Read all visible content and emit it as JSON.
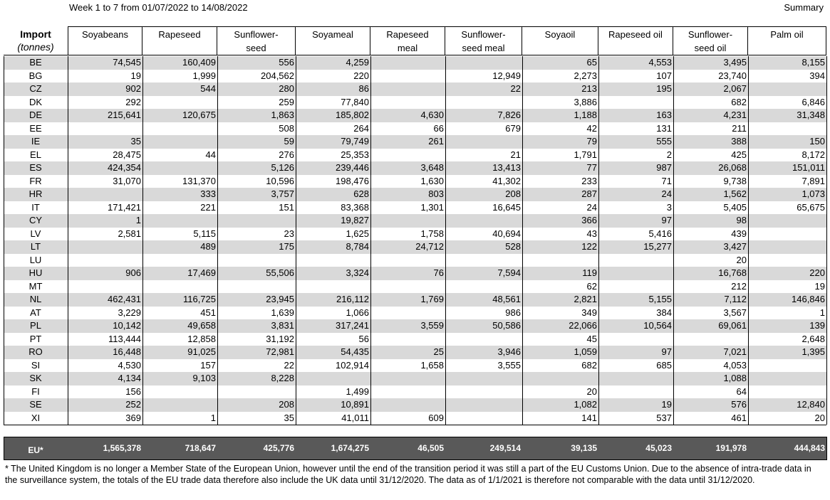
{
  "header": {
    "title": "Week 1 to 7 from 01/07/2022 to 14/08/2022",
    "summary": "Summary"
  },
  "table": {
    "corner_title": "Import",
    "corner_unit": "(tonnes)",
    "columns": [
      "Soyabeans",
      "Rapeseed",
      "Sunflower-\nseed",
      "Soyameal",
      "Rapeseed\nmeal",
      "Sunflower-\nseed meal",
      "Soyaoil",
      "Rapeseed oil",
      "Sunflower-\nseed oil",
      "Palm oil"
    ],
    "rows": [
      {
        "label": "BE",
        "values": [
          "74,545",
          "160,409",
          "556",
          "4,259",
          null,
          null,
          "65",
          "4,553",
          "3,495",
          "8,155"
        ]
      },
      {
        "label": "BG",
        "values": [
          "19",
          "1,999",
          "204,562",
          "220",
          null,
          "12,949",
          "2,273",
          "107",
          "23,740",
          "394"
        ]
      },
      {
        "label": "CZ",
        "values": [
          "902",
          "544",
          "280",
          "86",
          null,
          "22",
          "213",
          "195",
          "2,067",
          null
        ]
      },
      {
        "label": "DK",
        "values": [
          "292",
          null,
          "259",
          "77,840",
          null,
          null,
          "3,886",
          null,
          "682",
          "6,846"
        ]
      },
      {
        "label": "DE",
        "values": [
          "215,641",
          "120,675",
          "1,863",
          "185,802",
          "4,630",
          "7,826",
          "1,188",
          "163",
          "4,231",
          "31,348"
        ]
      },
      {
        "label": "EE",
        "values": [
          null,
          null,
          "508",
          "264",
          "66",
          "679",
          "42",
          "131",
          "211",
          null
        ]
      },
      {
        "label": "IE",
        "values": [
          "35",
          null,
          "59",
          "79,749",
          "261",
          null,
          "79",
          "555",
          "388",
          "150"
        ]
      },
      {
        "label": "EL",
        "values": [
          "28,475",
          "44",
          "276",
          "25,353",
          null,
          "21",
          "1,791",
          "2",
          "425",
          "8,172"
        ]
      },
      {
        "label": "ES",
        "values": [
          "424,354",
          null,
          "5,126",
          "239,446",
          "3,648",
          "13,413",
          "77",
          "987",
          "26,068",
          "151,011"
        ]
      },
      {
        "label": "FR",
        "values": [
          "31,070",
          "131,370",
          "10,596",
          "198,476",
          "1,630",
          "41,302",
          "233",
          "71",
          "9,738",
          "7,891"
        ]
      },
      {
        "label": "HR",
        "values": [
          null,
          "333",
          "3,757",
          "628",
          "803",
          "208",
          "287",
          "24",
          "1,562",
          "1,073"
        ]
      },
      {
        "label": "IT",
        "values": [
          "171,421",
          "221",
          "151",
          "83,368",
          "1,301",
          "16,645",
          "24",
          "3",
          "5,405",
          "65,675"
        ]
      },
      {
        "label": "CY",
        "values": [
          "1",
          null,
          null,
          "19,827",
          null,
          null,
          "366",
          "97",
          "98",
          null
        ]
      },
      {
        "label": "LV",
        "values": [
          "2,581",
          "5,115",
          "23",
          "1,625",
          "1,758",
          "40,694",
          "43",
          "5,416",
          "439",
          null
        ]
      },
      {
        "label": "LT",
        "values": [
          null,
          "489",
          "175",
          "8,784",
          "24,712",
          "528",
          "122",
          "15,277",
          "3,427",
          null
        ]
      },
      {
        "label": "LU",
        "values": [
          null,
          null,
          null,
          null,
          null,
          null,
          null,
          null,
          "20",
          null
        ]
      },
      {
        "label": "HU",
        "values": [
          "906",
          "17,469",
          "55,506",
          "3,324",
          "76",
          "7,594",
          "119",
          null,
          "16,768",
          "220"
        ]
      },
      {
        "label": "MT",
        "values": [
          null,
          null,
          null,
          null,
          null,
          null,
          "62",
          null,
          "212",
          "19"
        ]
      },
      {
        "label": "NL",
        "values": [
          "462,431",
          "116,725",
          "23,945",
          "216,112",
          "1,769",
          "48,561",
          "2,821",
          "5,155",
          "7,112",
          "146,846"
        ]
      },
      {
        "label": "AT",
        "values": [
          "3,229",
          "451",
          "1,639",
          "1,066",
          null,
          "986",
          "349",
          "384",
          "3,567",
          "1"
        ]
      },
      {
        "label": "PL",
        "values": [
          "10,142",
          "49,658",
          "3,831",
          "317,241",
          "3,559",
          "50,586",
          "22,066",
          "10,564",
          "69,061",
          "139"
        ]
      },
      {
        "label": "PT",
        "values": [
          "113,444",
          "12,858",
          "31,192",
          "56",
          null,
          null,
          "45",
          null,
          null,
          "2,648"
        ]
      },
      {
        "label": "RO",
        "values": [
          "16,448",
          "91,025",
          "72,981",
          "54,435",
          "25",
          "3,946",
          "1,059",
          "97",
          "7,021",
          "1,395"
        ]
      },
      {
        "label": "SI",
        "values": [
          "4,530",
          "157",
          "22",
          "102,914",
          "1,658",
          "3,555",
          "682",
          "685",
          "4,053",
          null
        ]
      },
      {
        "label": "SK",
        "values": [
          "4,134",
          "9,103",
          "8,228",
          null,
          null,
          null,
          null,
          null,
          "1,088",
          null
        ]
      },
      {
        "label": "FI",
        "values": [
          "156",
          null,
          null,
          "1,499",
          null,
          null,
          "20",
          null,
          "64",
          null
        ]
      },
      {
        "label": "SE",
        "values": [
          "252",
          null,
          "208",
          "10,891",
          null,
          null,
          "1,082",
          "19",
          "576",
          "12,840"
        ]
      },
      {
        "label": "XI",
        "values": [
          "369",
          "1",
          "35",
          "41,011",
          "609",
          null,
          "141",
          "537",
          "461",
          "20"
        ]
      }
    ],
    "total": {
      "label": "EU*",
      "values": [
        "1,565,378",
        "718,647",
        "425,776",
        "1,674,275",
        "46,505",
        "249,514",
        "39,135",
        "45,023",
        "191,978",
        "444,843"
      ]
    }
  },
  "footnote": "* The United Kingdom is no longer a Member State of the European Union, however until the end of the transition period it was still a part of the EU Customs Union. Due to the absence of intra-trade data in the surveillance system, the totals of the EU trade data  therefore also include the UK data until 31/12/2020. The data as of 1/1/2021 is therefore not comparable with the data until 31/12/2020."
}
